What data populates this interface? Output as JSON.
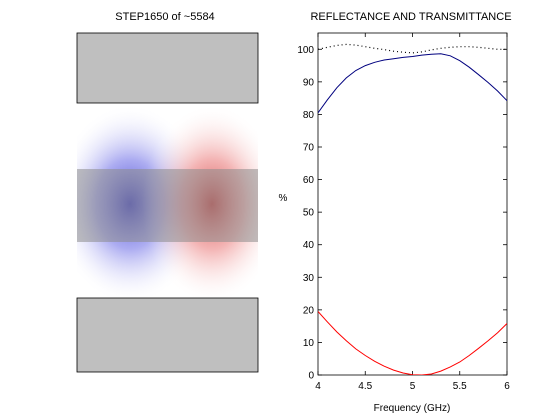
{
  "left_panel": {
    "title": "STEP1650 of ~5584"
  },
  "chart_data": {
    "type": "line",
    "title": "REFLECTANCE AND TRANSMITTANCE",
    "xlabel": "Frequency (GHz)",
    "ylabel": "%",
    "xlim": [
      4,
      6
    ],
    "ylim": [
      0,
      105
    ],
    "xticks": [
      "4",
      "4.5",
      "5",
      "5.5",
      "6"
    ],
    "yticks": [
      "0",
      "10",
      "20",
      "30",
      "40",
      "50",
      "60",
      "70",
      "80",
      "90",
      "100"
    ],
    "grid": false,
    "legend": false,
    "series": [
      {
        "color": "#00007f",
        "style": "solid",
        "x": [
          4.0,
          4.1,
          4.2,
          4.3,
          4.4,
          4.5,
          4.6,
          4.7,
          4.8,
          4.9,
          5.0,
          5.1,
          5.2,
          5.3,
          5.4,
          5.5,
          5.6,
          5.7,
          5.8,
          5.9,
          6.0
        ],
        "y": [
          80.5,
          84.5,
          88.2,
          91.2,
          93.5,
          95.0,
          96.0,
          96.7,
          97.1,
          97.5,
          97.8,
          98.2,
          98.5,
          98.6,
          98.0,
          96.5,
          94.5,
          92.2,
          89.8,
          87.2,
          84.2
        ]
      },
      {
        "color": "#ff0000",
        "style": "solid",
        "x": [
          4.0,
          4.1,
          4.2,
          4.3,
          4.4,
          4.5,
          4.6,
          4.7,
          4.8,
          4.9,
          5.0,
          5.1,
          5.2,
          5.3,
          5.4,
          5.5,
          5.6,
          5.7,
          5.8,
          5.9,
          6.0
        ],
        "y": [
          19.5,
          16.3,
          13.2,
          10.5,
          8.0,
          6.0,
          4.2,
          2.7,
          1.5,
          0.6,
          0.1,
          0.0,
          0.3,
          1.2,
          2.5,
          4.0,
          6.0,
          8.2,
          10.5,
          13.0,
          15.8
        ]
      },
      {
        "color": "#000000",
        "style": "dotted",
        "x": [
          4.0,
          4.1,
          4.2,
          4.3,
          4.4,
          4.5,
          4.6,
          4.7,
          4.8,
          4.9,
          5.0,
          5.1,
          5.2,
          5.3,
          5.4,
          5.5,
          5.6,
          5.7,
          5.8,
          5.9,
          6.0
        ],
        "y": [
          100.0,
          100.6,
          101.2,
          101.5,
          101.3,
          100.8,
          100.3,
          99.9,
          99.4,
          99.1,
          98.9,
          99.2,
          99.8,
          100.3,
          100.6,
          100.8,
          100.8,
          100.6,
          100.3,
          100.0,
          100.0
        ]
      }
    ]
  }
}
